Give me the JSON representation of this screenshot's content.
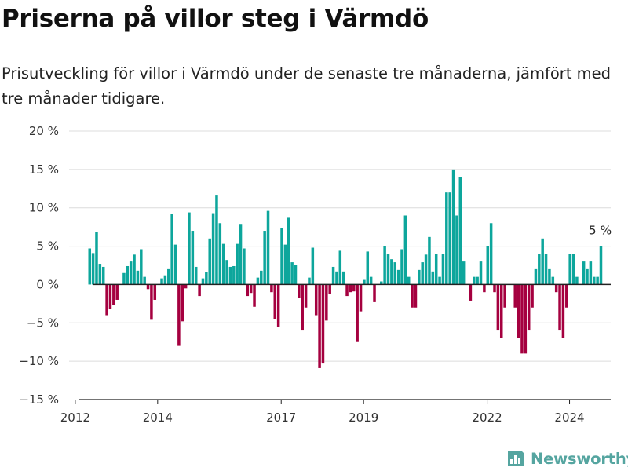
{
  "title": "Priserna på villor steg i Värmdö",
  "subtitle": "Prisutveckling för villor i Värmdö under de senaste tre månaderna, jämfört med tre månader tidigare.",
  "brand": {
    "name": "Newsworthy",
    "icon": "bar-chart-logo-icon",
    "color": "#55a5a0"
  },
  "colors": {
    "positive": "#0da69c",
    "negative": "#a5003f",
    "grid": "#dcdcdc",
    "axis": "#222222"
  },
  "chart_data": {
    "type": "bar",
    "ylim": [
      -15,
      20
    ],
    "yticks": [
      -15,
      -10,
      -5,
      0,
      5,
      10,
      15,
      20
    ],
    "ytick_labels": [
      "−15 %",
      "−10 %",
      "−5 %",
      "0 %",
      "5 %",
      "10 %",
      "15 %",
      "20 %"
    ],
    "xlim": [
      2011.85,
      2025.0
    ],
    "xticks": [
      2012,
      2014,
      2017,
      2019,
      2022,
      2024
    ],
    "xtick_labels": [
      "2012",
      "2014",
      "2017",
      "2019",
      "2022",
      "2024"
    ],
    "grid": true,
    "start_year": 2012.35,
    "step_years": 0.0833,
    "values": [
      4.7,
      4.1,
      6.9,
      2.7,
      2.3,
      -4.0,
      -3.2,
      -2.7,
      -2.0,
      0,
      1.5,
      2.4,
      3.0,
      3.9,
      1.8,
      4.6,
      1.0,
      -0.6,
      -4.6,
      -2.0,
      0,
      0.8,
      1.2,
      2.0,
      9.2,
      5.2,
      -8.0,
      -4.8,
      -0.5,
      9.4,
      7.0,
      2.3,
      -1.5,
      0.8,
      1.6,
      6.0,
      9.3,
      11.6,
      8.0,
      5.3,
      3.2,
      2.3,
      2.4,
      5.3,
      7.9,
      4.7,
      -1.5,
      -1.1,
      -2.9,
      0.9,
      1.8,
      7.0,
      9.6,
      -1.0,
      -4.5,
      -5.5,
      7.4,
      5.2,
      8.7,
      2.9,
      2.6,
      -1.7,
      -6.0,
      -3.0,
      0.9,
      4.8,
      -4.0,
      -10.9,
      -10.3,
      -4.7,
      -1.2,
      2.3,
      1.7,
      4.4,
      1.7,
      -1.5,
      -1.0,
      -0.9,
      -7.5,
      -3.5,
      0.6,
      4.3,
      1.0,
      -2.3,
      0,
      0.4,
      5.0,
      4.0,
      3.3,
      2.9,
      1.9,
      4.6,
      9.0,
      1.0,
      -3.0,
      -3.0,
      1.9,
      2.9,
      3.9,
      6.2,
      1.7,
      4.0,
      1.0,
      4.0,
      12.0,
      12.0,
      15.0,
      9.0,
      14.0,
      3.0,
      0,
      -2.1,
      1.0,
      1.0,
      3.0,
      -1.0,
      5.0,
      8.0,
      -1.0,
      -6.0,
      -7.0,
      -3.0,
      0,
      0,
      -3.0,
      -7.0,
      -9.0,
      -9.0,
      -6.0,
      -3.0,
      2.0,
      4.0,
      6.0,
      4.0,
      2.0,
      1.0,
      -1.0,
      -6.0,
      -7.0,
      -3.0,
      4.0,
      4.0,
      1.0,
      0,
      3.0,
      2.0,
      3.0,
      1.0,
      1.0,
      5.0
    ],
    "annotation": {
      "text": "5 %"
    }
  }
}
